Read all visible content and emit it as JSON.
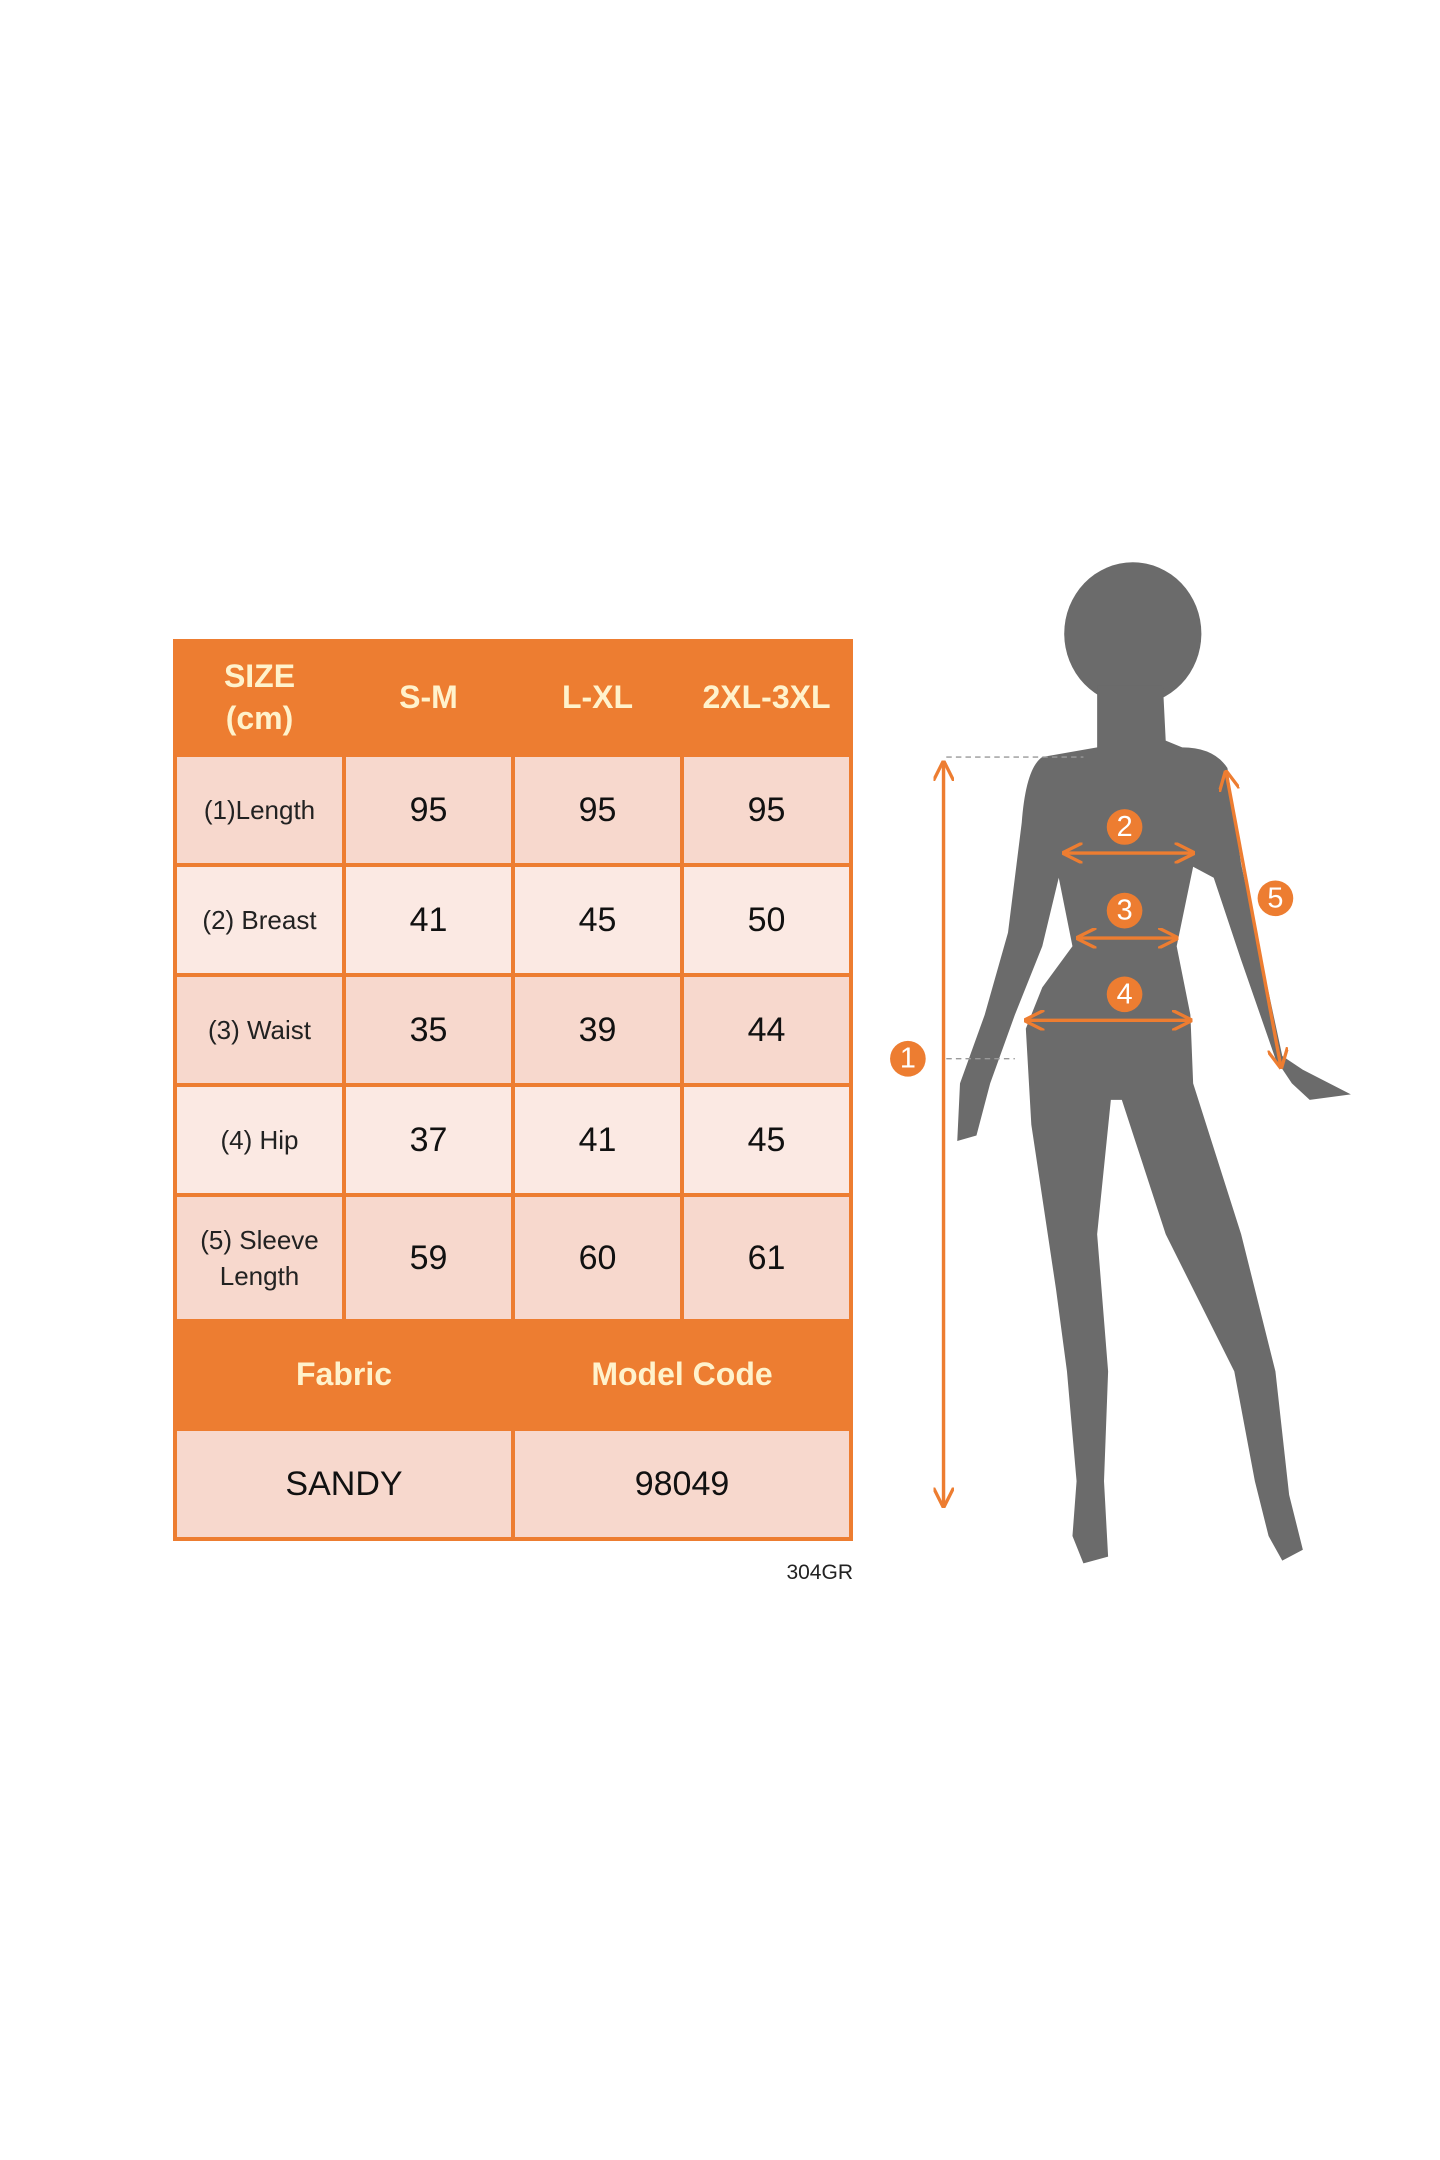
{
  "table": {
    "header": {
      "size_label_line1": "SIZE",
      "size_label_line2": "(cm)",
      "sizes": [
        "S-M",
        "L-XL",
        "2XL-3XL"
      ]
    },
    "rows": [
      {
        "label": "(1)Length",
        "values": [
          "95",
          "95",
          "95"
        ]
      },
      {
        "label": "(2) Breast",
        "values": [
          "41",
          "45",
          "50"
        ]
      },
      {
        "label": "(3) Waist",
        "values": [
          "35",
          "39",
          "44"
        ]
      },
      {
        "label": "(4) Hip",
        "values": [
          "37",
          "41",
          "45"
        ]
      },
      {
        "label_line1": "(5) Sleeve",
        "label_line2": "Length",
        "values": [
          "59",
          "60",
          "61"
        ]
      }
    ],
    "footer": {
      "fabric_label": "Fabric",
      "model_code_label": "Model Code",
      "fabric_value": "SANDY",
      "model_code_value": "98049"
    }
  },
  "code_tag": "304GR",
  "figure": {
    "markers": [
      "1",
      "2",
      "3",
      "4",
      "5"
    ]
  },
  "colors": {
    "accent": "#ed7d31",
    "header_text": "#fff2cc",
    "cell_dark": "#f7d8cd",
    "cell_light": "#fbe9e3",
    "silhouette": "#6b6b6b"
  }
}
